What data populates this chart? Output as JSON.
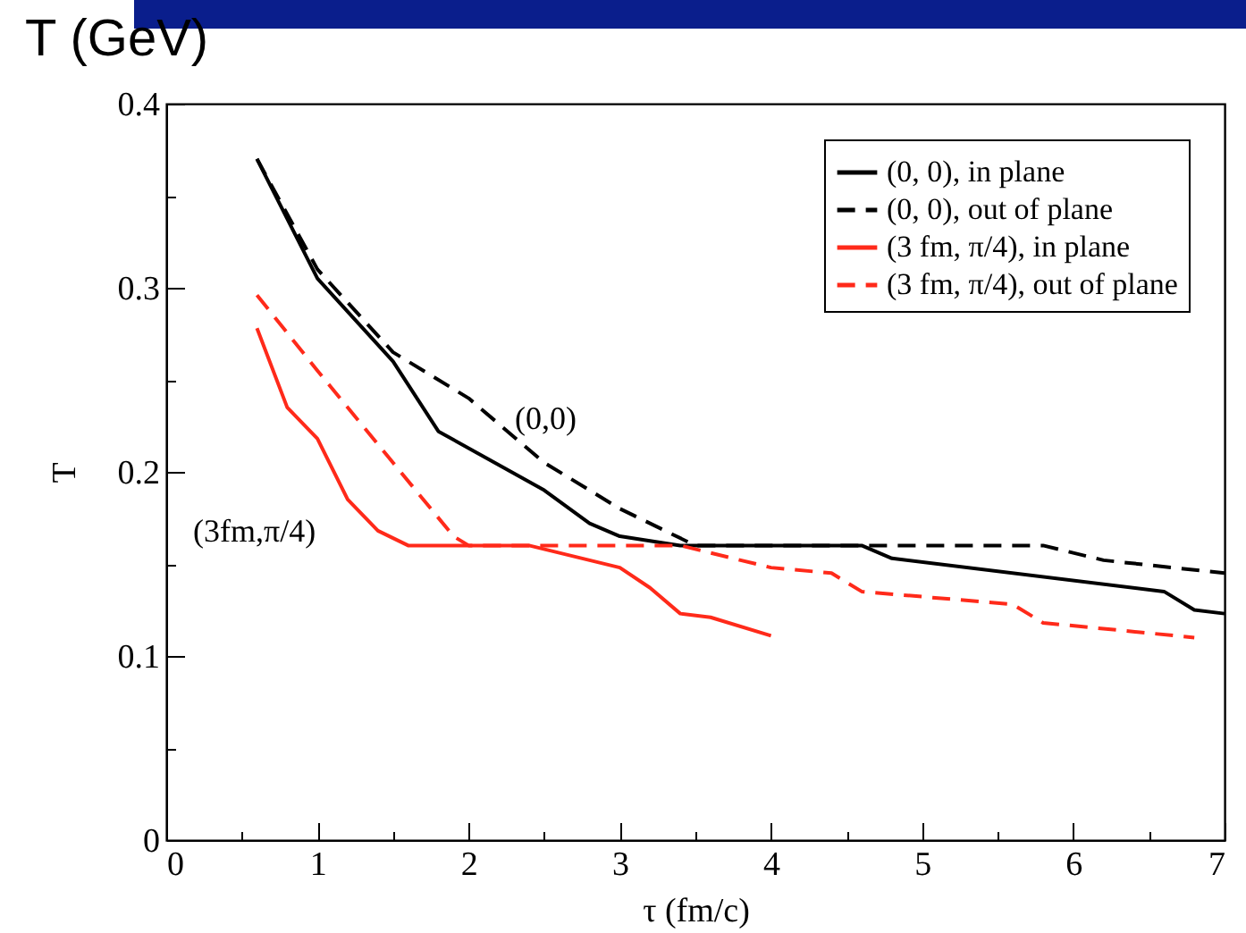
{
  "chart_data": {
    "type": "line",
    "xlabel": "τ (fm/c)",
    "ylabel": "T",
    "xlim": [
      0,
      7
    ],
    "ylim": [
      0,
      0.4
    ],
    "xticks": [
      0,
      {
        "value": 0.5,
        "label": null
      },
      1,
      {
        "value": 1.5,
        "label": null
      },
      2,
      {
        "value": 2.5,
        "label": null
      },
      3,
      {
        "value": 3.5,
        "label": null
      },
      4,
      {
        "value": 4.5,
        "label": null
      },
      5,
      {
        "value": 5.5,
        "label": null
      },
      6,
      {
        "value": 6.5,
        "label": null
      },
      7
    ],
    "yticks": [
      0,
      {
        "value": 0.05,
        "label": null
      },
      0.1,
      {
        "value": 0.15,
        "label": null
      },
      0.2,
      {
        "value": 0.25,
        "label": null
      },
      0.3,
      {
        "value": 0.35,
        "label": null
      },
      0.4
    ],
    "grid": false,
    "legend": "top right",
    "marker": "none",
    "series": [
      {
        "name": "(0, 0), in plane",
        "color": "#000000",
        "line_style": "solid",
        "x": [
          0.6,
          1.0,
          1.5,
          1.8,
          2.5,
          2.8,
          3.0,
          3.4,
          4.6,
          4.8,
          6.6,
          6.8,
          7.0
        ],
        "values": [
          0.37,
          0.305,
          0.26,
          0.222,
          0.19,
          0.172,
          0.165,
          0.16,
          0.16,
          0.153,
          0.135,
          0.125,
          0.123
        ]
      },
      {
        "name": "(0, 0), out of plane",
        "color": "#000000",
        "line_style": "dashed",
        "x": [
          0.6,
          1.0,
          1.5,
          2.0,
          2.5,
          3.0,
          3.5,
          5.8,
          6.2,
          7.0
        ],
        "values": [
          0.37,
          0.31,
          0.265,
          0.24,
          0.205,
          0.18,
          0.16,
          0.16,
          0.152,
          0.145
        ]
      },
      {
        "name": "(3 fm, π/4), in plane",
        "color": "#ff2a1a",
        "line_style": "solid",
        "x": [
          0.6,
          0.8,
          1.0,
          1.2,
          1.4,
          1.6,
          2.4,
          3.0,
          3.2,
          3.4,
          3.6,
          4.0
        ],
        "values": [
          0.278,
          0.235,
          0.218,
          0.185,
          0.168,
          0.16,
          0.16,
          0.148,
          0.137,
          0.123,
          0.121,
          0.111
        ]
      },
      {
        "name": "(3 fm, π/4), out of plane",
        "color": "#ff2a1a",
        "line_style": "dashed",
        "x": [
          0.6,
          1.0,
          1.5,
          1.9,
          2.0,
          3.4,
          4.0,
          4.4,
          4.6,
          5.6,
          5.8,
          6.8
        ],
        "values": [
          0.296,
          0.255,
          0.205,
          0.165,
          0.16,
          0.16,
          0.148,
          0.145,
          0.135,
          0.128,
          0.118,
          0.11
        ]
      }
    ],
    "annotations": [
      "T (GeV)",
      "(0,0)",
      "(3fm,π/4)"
    ]
  }
}
